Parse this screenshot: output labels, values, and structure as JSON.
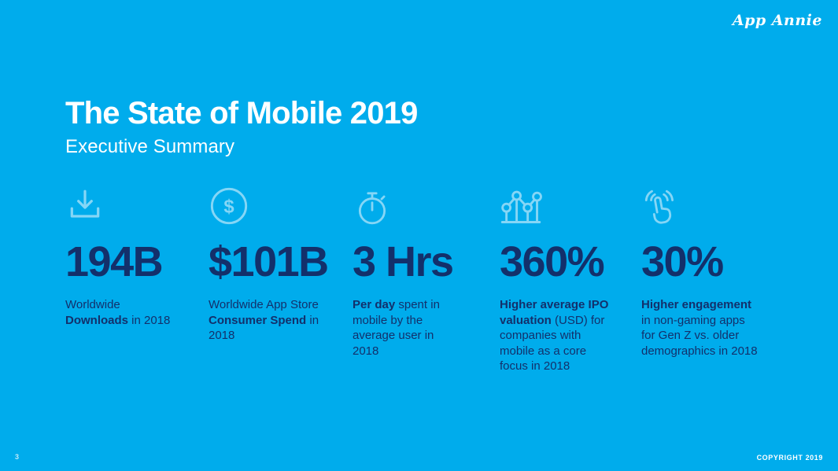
{
  "slide": {
    "brand": "App Annie",
    "title": "The State of Mobile 2019",
    "subtitle": "Executive Summary",
    "page_number": "3",
    "copyright": "COPYRIGHT 2019",
    "colors": {
      "background": "#00ACEC",
      "headline_text": "#FFFFFF",
      "stat_text": "#13306B",
      "icon": "#85D6F6"
    },
    "stats": [
      {
        "icon": "download-icon",
        "value": "194B",
        "description_segments": [
          {
            "t": "Worldwide ",
            "b": false
          },
          {
            "t": "Downloads",
            "b": true
          },
          {
            "t": " in 2018",
            "b": false
          }
        ]
      },
      {
        "icon": "coin-dollar-icon",
        "value": "$101B",
        "description_segments": [
          {
            "t": "Worldwide App Store ",
            "b": false
          },
          {
            "t": "Consumer Spend",
            "b": true
          },
          {
            "t": " in 2018",
            "b": false
          }
        ]
      },
      {
        "icon": "stopwatch-icon",
        "value": "3 Hrs",
        "description_segments": [
          {
            "t": "Per day",
            "b": true
          },
          {
            "t": " spent in mobile by the average user in 2018",
            "b": false
          }
        ]
      },
      {
        "icon": "line-chart-icon",
        "value": "360%",
        "description_segments": [
          {
            "t": "Higher average IPO valuation",
            "b": true
          },
          {
            "t": " (USD) for companies with mobile as a core focus in 2018",
            "b": false
          }
        ]
      },
      {
        "icon": "tap-gesture-icon",
        "value": "30%",
        "description_segments": [
          {
            "t": "Higher engagement",
            "b": true
          },
          {
            "t": " in non-gaming apps for Gen Z vs. older demographics in 2018",
            "b": false
          }
        ]
      }
    ]
  }
}
